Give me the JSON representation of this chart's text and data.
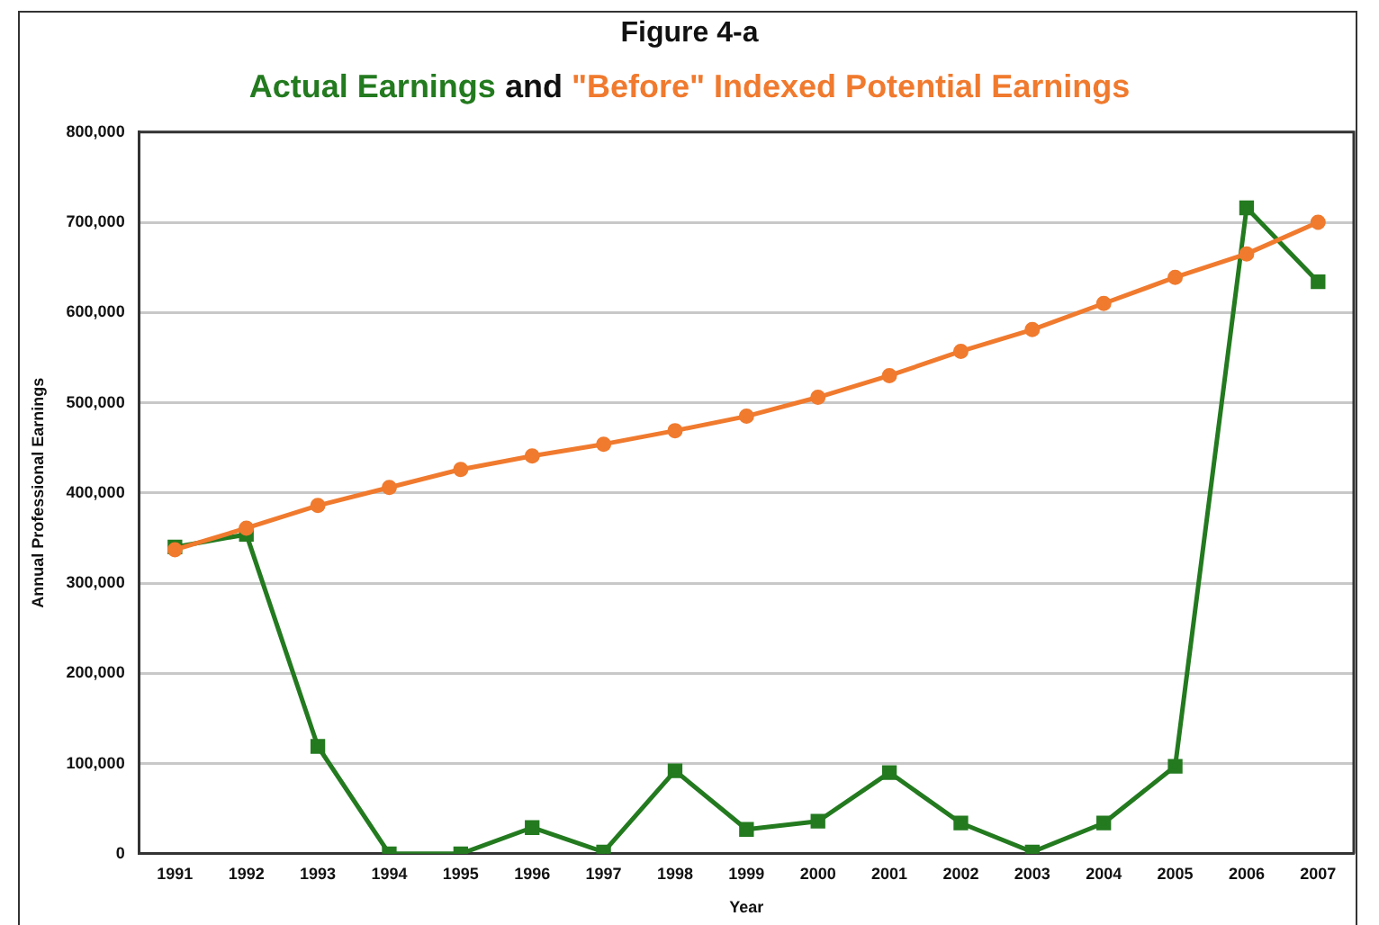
{
  "chart_data": {
    "type": "line",
    "title": "Figure 4-a",
    "annotations": [
      "and"
    ],
    "xlabel": "Year",
    "ylabel": "Annual Professional Earnings",
    "categories": [
      "1991",
      "1992",
      "1993",
      "1994",
      "1995",
      "1996",
      "1997",
      "1998",
      "1999",
      "2000",
      "2001",
      "2002",
      "2003",
      "2004",
      "2005",
      "2006",
      "2007"
    ],
    "series": [
      {
        "name": "Actual Earnings",
        "color": "#237a1f",
        "marker": "square",
        "values": [
          340000,
          354000,
          119000,
          0,
          0,
          29000,
          2000,
          92000,
          27000,
          36000,
          90000,
          34000,
          2000,
          34000,
          97000,
          716000,
          634000
        ]
      },
      {
        "name": "\"Before\" Indexed Potential Earnings",
        "color": "#f07a2e",
        "marker": "circle",
        "values": [
          337000,
          361000,
          386000,
          406000,
          426000,
          441000,
          454000,
          469000,
          485000,
          506000,
          530000,
          557000,
          581000,
          610000,
          639000,
          665000,
          700000
        ]
      }
    ],
    "ylim": [
      0,
      800000
    ],
    "yticks": [
      0,
      {
        "value": 100000,
        "label": "100,000"
      },
      {
        "value": 200000,
        "label": "200,000"
      },
      {
        "value": 300000,
        "label": "300,000"
      },
      {
        "value": 400000,
        "label": "400,000"
      },
      {
        "value": 500000,
        "label": "500,000"
      },
      {
        "value": 600000,
        "label": "600,000"
      },
      {
        "value": 700000,
        "label": "700,000"
      },
      {
        "value": 800000,
        "label": "800,000"
      }
    ],
    "grid": "y",
    "legend": "top"
  }
}
